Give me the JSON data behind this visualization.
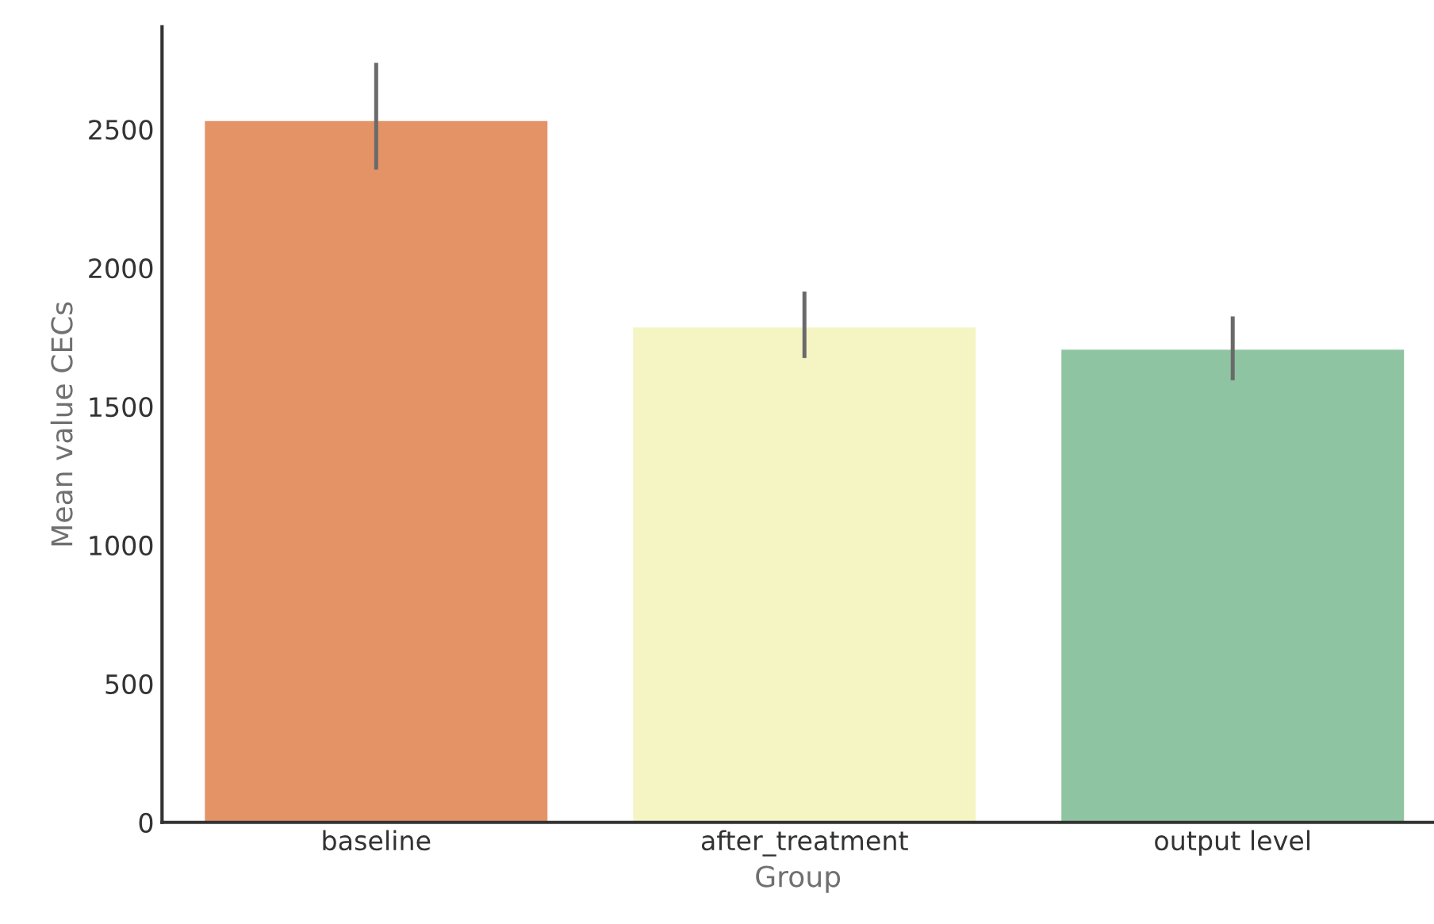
{
  "chart_data": {
    "type": "bar",
    "xlabel": "Group",
    "ylabel": "Mean value CECs",
    "categories": [
      "baseline",
      "after_treatment",
      "output level"
    ],
    "values": [
      2530,
      1785,
      1705
    ],
    "colors": [
      "#e49366",
      "#f5f5c3",
      "#8fc4a2"
    ],
    "errors": [
      [
        2355,
        2740
      ],
      [
        1675,
        1915
      ],
      [
        1595,
        1825
      ]
    ],
    "ylim": [
      0,
      2870
    ],
    "yticks": [
      0,
      500,
      1000,
      1500,
      2000,
      2500
    ],
    "grid": false,
    "legend": false
  }
}
